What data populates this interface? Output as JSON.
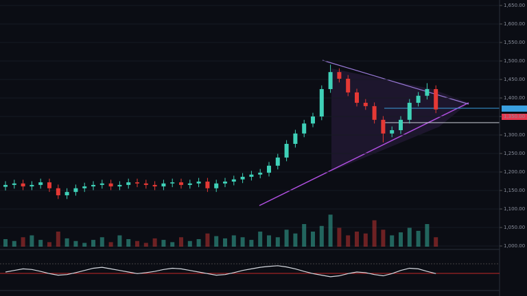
{
  "chart_data": {
    "type": "candlestick",
    "open": [
      1160,
      1165,
      1169,
      1161,
      1165,
      1172,
      1156,
      1137,
      1146,
      1156,
      1161,
      1165,
      1169,
      1161,
      1165,
      1172,
      1169,
      1165,
      1161,
      1169,
      1172,
      1165,
      1169,
      1174,
      1156,
      1169,
      1174,
      1180,
      1187,
      1193,
      1198,
      1217,
      1239,
      1276,
      1304,
      1331,
      1350,
      1424,
      1470,
      1452,
      1415,
      1387,
      1378,
      1341,
      1304,
      1313,
      1341,
      1387,
      1406,
      1424
    ],
    "high": [
      1175,
      1179,
      1179,
      1175,
      1182,
      1182,
      1166,
      1156,
      1166,
      1171,
      1175,
      1179,
      1179,
      1175,
      1182,
      1182,
      1179,
      1175,
      1179,
      1182,
      1182,
      1179,
      1184,
      1184,
      1179,
      1184,
      1190,
      1197,
      1203,
      1208,
      1227,
      1249,
      1286,
      1314,
      1341,
      1360,
      1434,
      1490,
      1480,
      1462,
      1425,
      1397,
      1388,
      1351,
      1323,
      1351,
      1397,
      1416,
      1440,
      1434
    ],
    "low": [
      1150,
      1155,
      1151,
      1151,
      1155,
      1146,
      1127,
      1127,
      1136,
      1146,
      1151,
      1155,
      1151,
      1151,
      1155,
      1159,
      1155,
      1151,
      1151,
      1159,
      1155,
      1155,
      1159,
      1146,
      1146,
      1159,
      1164,
      1170,
      1177,
      1183,
      1188,
      1207,
      1229,
      1266,
      1294,
      1321,
      1340,
      1414,
      1442,
      1405,
      1377,
      1368,
      1331,
      1280,
      1294,
      1303,
      1331,
      1377,
      1396,
      1359
    ],
    "close": [
      1165,
      1169,
      1161,
      1165,
      1172,
      1156,
      1137,
      1146,
      1156,
      1161,
      1165,
      1169,
      1161,
      1165,
      1172,
      1169,
      1165,
      1161,
      1169,
      1172,
      1165,
      1169,
      1174,
      1156,
      1169,
      1174,
      1180,
      1187,
      1193,
      1198,
      1217,
      1239,
      1276,
      1304,
      1331,
      1350,
      1424,
      1470,
      1452,
      1415,
      1387,
      1378,
      1341,
      1304,
      1313,
      1341,
      1387,
      1406,
      1424,
      1369
    ],
    "up_color": "#3fd1b8",
    "down_color": "#e53935",
    "ylim": [
      1000,
      1650
    ],
    "yticks": [
      {
        "value": 1000,
        "label": "1,000.00"
      },
      {
        "value": 1050,
        "label": "1,050.00"
      },
      {
        "value": 1100,
        "label": "1,100.00"
      },
      {
        "value": 1150,
        "label": "1,150.00"
      },
      {
        "value": 1200,
        "label": "1,200.00"
      },
      {
        "value": 1250,
        "label": "1,250.00"
      },
      {
        "value": 1300,
        "label": "1,300.00"
      },
      {
        "value": 1350,
        "label": "1,350.00"
      },
      {
        "value": 1400,
        "label": "1,400.00"
      },
      {
        "value": 1450,
        "label": "1,450.00"
      },
      {
        "value": 1500,
        "label": "1,500.00"
      },
      {
        "value": 1550,
        "label": "1,550.00"
      },
      {
        "value": 1600,
        "label": "1,600.00"
      },
      {
        "value": 1650,
        "label": "1,650.00"
      }
    ],
    "volume": [
      20,
      15,
      25,
      30,
      18,
      12,
      40,
      22,
      15,
      10,
      18,
      25,
      12,
      30,
      20,
      15,
      10,
      22,
      18,
      12,
      25,
      15,
      20,
      35,
      28,
      22,
      30,
      25,
      18,
      40,
      30,
      25,
      45,
      35,
      60,
      40,
      55,
      85,
      50,
      30,
      40,
      35,
      70,
      45,
      30,
      38,
      50,
      42,
      60,
      25
    ],
    "volume_ylim": [
      0,
      100
    ],
    "oscillator": [
      50,
      55,
      60,
      58,
      52,
      45,
      40,
      42,
      48,
      55,
      62,
      65,
      60,
      55,
      50,
      45,
      48,
      52,
      58,
      62,
      60,
      55,
      50,
      45,
      40,
      42,
      48,
      55,
      60,
      65,
      68,
      70,
      66,
      60,
      52,
      45,
      40,
      35,
      38,
      45,
      50,
      48,
      42,
      38,
      45,
      55,
      62,
      60,
      52,
      45
    ],
    "oscillator_ylim": [
      0,
      100
    ],
    "grid": true
  }
}
